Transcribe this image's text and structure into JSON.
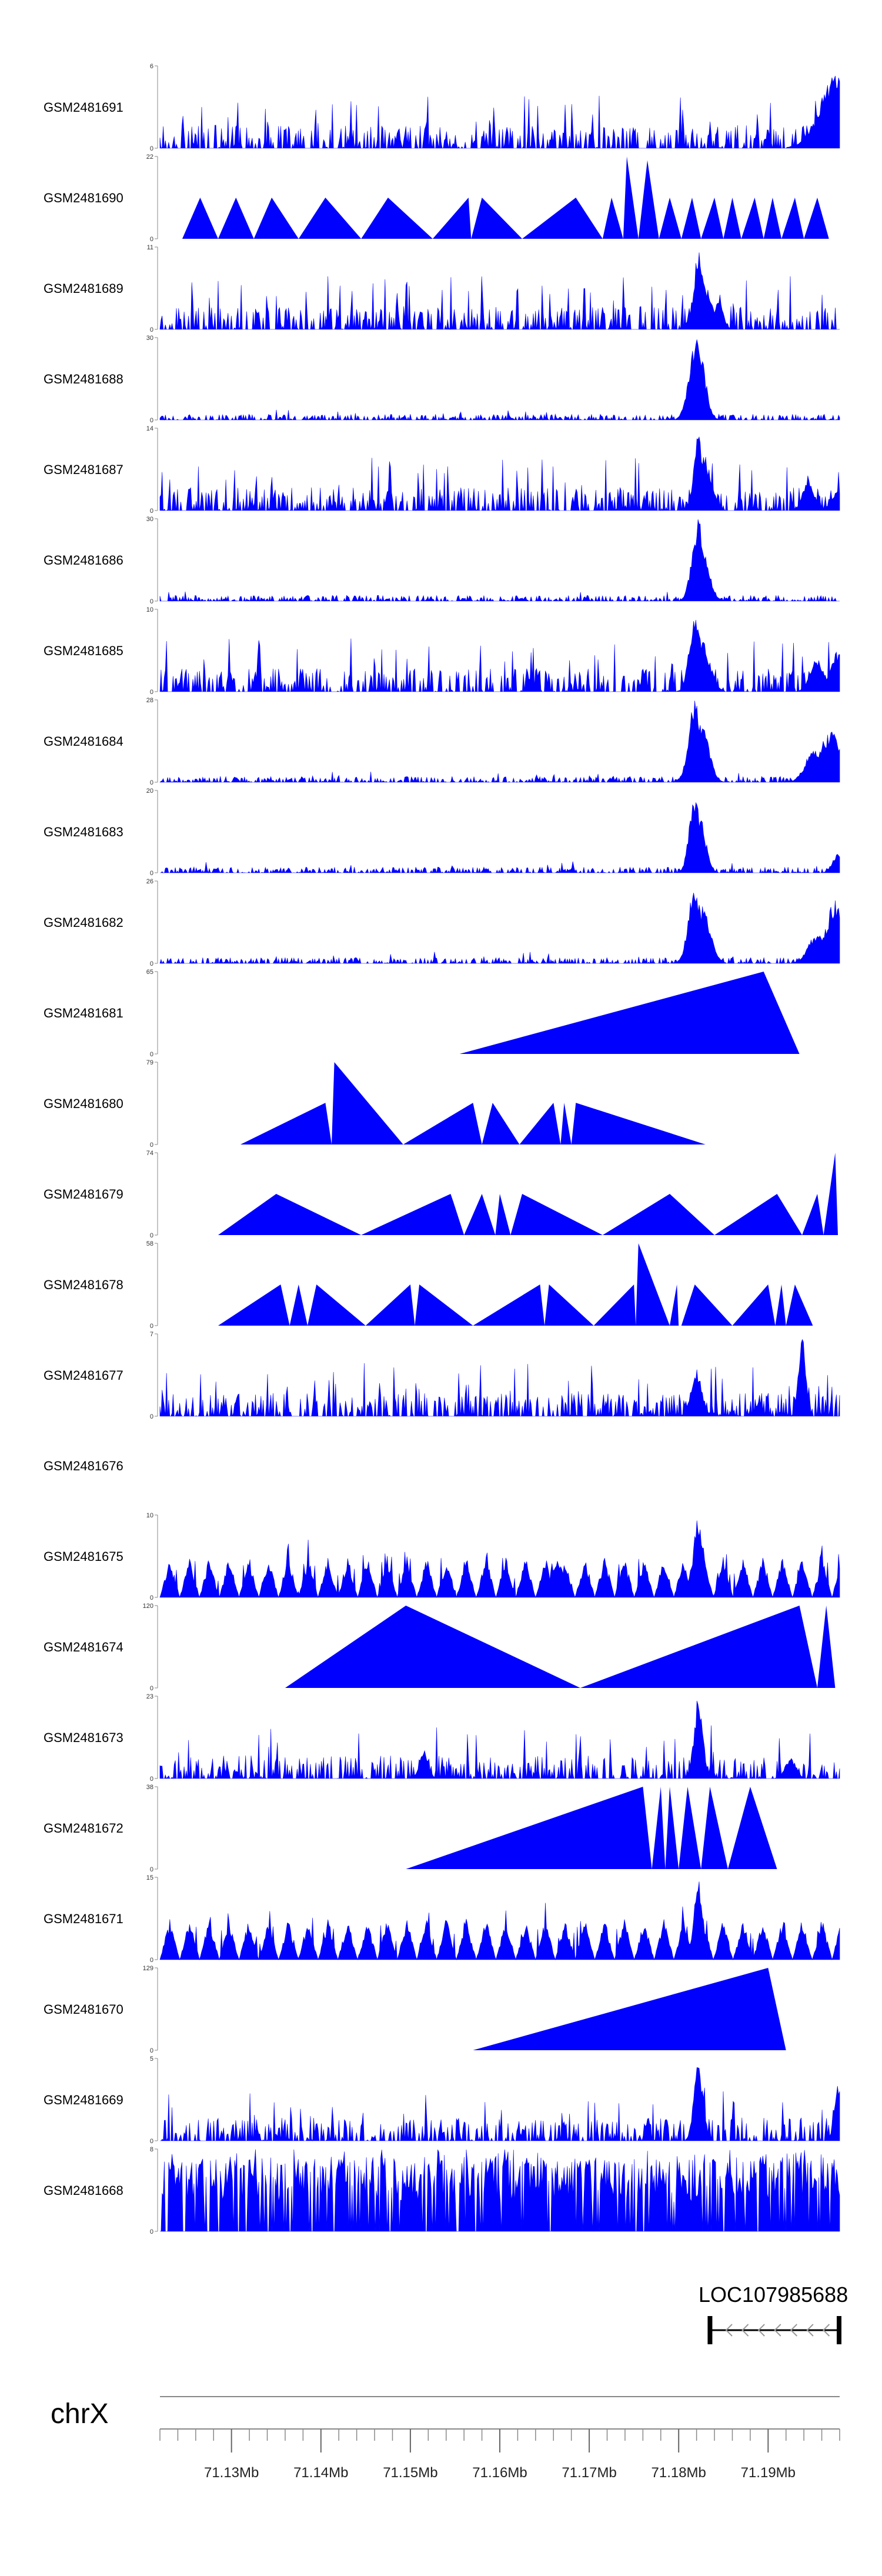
{
  "chart_data": {
    "type": "area",
    "title": "",
    "xlabel": "",
    "ylabel": "",
    "chromosome": "chrX",
    "xlim_mb": [
      71.122,
      71.198
    ],
    "axis_ticks": [
      "71.13Mb",
      "71.14Mb",
      "71.15Mb",
      "71.16Mb",
      "71.17Mb",
      "71.18Mb",
      "71.19Mb"
    ],
    "axis_tick_values": [
      71.13,
      71.14,
      71.15,
      71.16,
      71.17,
      71.18,
      71.19
    ],
    "gene": {
      "name": "LOC107985688",
      "start_mb": 71.1835,
      "end_mb": 71.198,
      "strand": "-"
    },
    "tracks": [
      {
        "name": "GSM2481691",
        "ymax": 6,
        "style": "dense",
        "peaks": [
          [
            71.198,
            6.0,
            0.002
          ]
        ]
      },
      {
        "name": "GSM2481690",
        "ymax": 22,
        "style": "sparse",
        "points": [
          [
            71.1245,
            0
          ],
          [
            71.1265,
            11
          ],
          [
            71.1285,
            0
          ],
          [
            71.1305,
            11
          ],
          [
            71.1325,
            0
          ],
          [
            71.1345,
            11
          ],
          [
            71.1375,
            0
          ],
          [
            71.1405,
            11
          ],
          [
            71.1445,
            0
          ],
          [
            71.1475,
            11
          ],
          [
            71.1525,
            0
          ],
          [
            71.1565,
            11
          ],
          [
            71.1568,
            0
          ],
          [
            71.158,
            11
          ],
          [
            71.1625,
            0
          ],
          [
            71.1685,
            11
          ],
          [
            71.1715,
            0
          ],
          [
            71.1725,
            11
          ],
          [
            71.1738,
            0
          ],
          [
            71.1742,
            22
          ],
          [
            71.1755,
            0
          ],
          [
            71.1765,
            21
          ],
          [
            71.1778,
            0
          ],
          [
            71.179,
            11
          ],
          [
            71.1803,
            0
          ],
          [
            71.1815,
            11
          ],
          [
            71.1825,
            0
          ],
          [
            71.184,
            11
          ],
          [
            71.185,
            0
          ],
          [
            71.186,
            11
          ],
          [
            71.187,
            0
          ],
          [
            71.1885,
            11
          ],
          [
            71.1895,
            0
          ],
          [
            71.1905,
            11
          ],
          [
            71.1915,
            0
          ],
          [
            71.193,
            11
          ],
          [
            71.194,
            0
          ],
          [
            71.1955,
            11
          ],
          [
            71.1968,
            0
          ]
        ]
      },
      {
        "name": "GSM2481689",
        "ymax": 11,
        "style": "dense",
        "peaks": [
          [
            71.1823,
            11,
            0.0006
          ],
          [
            71.183,
            6,
            0.0008
          ],
          [
            71.1845,
            4,
            0.0005
          ]
        ]
      },
      {
        "name": "GSM2481688",
        "ymax": 30,
        "style": "lowpeak",
        "peaks": [
          [
            71.182,
            30,
            0.0008
          ],
          [
            71.1823,
            26,
            0.0007
          ],
          [
            71.1816,
            14,
            0.0006
          ]
        ]
      },
      {
        "name": "GSM2481687",
        "ymax": 14,
        "style": "dense",
        "peaks": [
          [
            71.1822,
            14,
            0.0005
          ],
          [
            71.1828,
            10,
            0.0008
          ],
          [
            71.1945,
            6,
            0.0006
          ],
          [
            71.198,
            4,
            0.0008
          ]
        ]
      },
      {
        "name": "GSM2481686",
        "ymax": 30,
        "style": "lowpeak",
        "peaks": [
          [
            71.1822,
            30,
            0.0007
          ],
          [
            71.1826,
            20,
            0.0008
          ],
          [
            71.1818,
            12,
            0.0005
          ]
        ]
      },
      {
        "name": "GSM2481685",
        "ymax": 10,
        "style": "dense",
        "peaks": [
          [
            71.1818,
            10,
            0.0006
          ],
          [
            71.1825,
            7,
            0.0009
          ],
          [
            71.1832,
            4,
            0.0006
          ],
          [
            71.1955,
            4,
            0.0008
          ],
          [
            71.1978,
            5,
            0.0008
          ]
        ]
      },
      {
        "name": "GSM2481684",
        "ymax": 28,
        "style": "lowpeak",
        "peaks": [
          [
            71.1818,
            28,
            0.0007
          ],
          [
            71.1826,
            20,
            0.0008
          ],
          [
            71.1832,
            10,
            0.0006
          ],
          [
            71.1952,
            12,
            0.001
          ],
          [
            71.197,
            18,
            0.0012
          ]
        ]
      },
      {
        "name": "GSM2481683",
        "ymax": 20,
        "style": "lowpeak",
        "peaks": [
          [
            71.1818,
            20,
            0.0006
          ],
          [
            71.1823,
            14,
            0.0007
          ],
          [
            71.1978,
            5,
            0.0006
          ]
        ]
      },
      {
        "name": "GSM2481682",
        "ymax": 26,
        "style": "lowpeak",
        "peaks": [
          [
            71.1818,
            26,
            0.0007
          ],
          [
            71.1826,
            18,
            0.0009
          ],
          [
            71.1833,
            8,
            0.0006
          ],
          [
            71.1955,
            10,
            0.001
          ],
          [
            71.1975,
            20,
            0.001
          ]
        ]
      },
      {
        "name": "GSM2481681",
        "ymax": 65,
        "style": "sparse",
        "points": [
          [
            71.1555,
            0
          ],
          [
            71.1895,
            65
          ],
          [
            71.1935,
            0
          ]
        ]
      },
      {
        "name": "GSM2481680",
        "ymax": 79,
        "style": "sparse",
        "points": [
          [
            71.131,
            0
          ],
          [
            71.1405,
            40
          ],
          [
            71.1412,
            0
          ],
          [
            71.1415,
            79
          ],
          [
            71.1492,
            0
          ],
          [
            71.157,
            40
          ],
          [
            71.158,
            0
          ],
          [
            71.1592,
            40
          ],
          [
            71.1622,
            0
          ],
          [
            71.166,
            40
          ],
          [
            71.1668,
            0
          ],
          [
            71.1672,
            40
          ],
          [
            71.168,
            0
          ],
          [
            71.1685,
            40
          ],
          [
            71.183,
            0
          ]
        ]
      },
      {
        "name": "GSM2481679",
        "ymax": 74,
        "style": "sparse",
        "points": [
          [
            71.1285,
            0
          ],
          [
            71.135,
            37
          ],
          [
            71.1445,
            0
          ],
          [
            71.1545,
            37
          ],
          [
            71.1548,
            30
          ],
          [
            71.156,
            0
          ],
          [
            71.158,
            37
          ],
          [
            71.1595,
            0
          ],
          [
            71.16,
            37
          ],
          [
            71.1612,
            0
          ],
          [
            71.1625,
            37
          ],
          [
            71.1715,
            0
          ],
          [
            71.179,
            37
          ],
          [
            71.184,
            0
          ],
          [
            71.191,
            37
          ],
          [
            71.1938,
            0
          ],
          [
            71.1955,
            37
          ],
          [
            71.1962,
            0
          ],
          [
            71.1975,
            74
          ],
          [
            71.1978,
            0
          ]
        ]
      },
      {
        "name": "GSM2481678",
        "ymax": 58,
        "style": "sparse",
        "points": [
          [
            71.1285,
            0
          ],
          [
            71.1355,
            29
          ],
          [
            71.1365,
            0
          ],
          [
            71.1375,
            29
          ],
          [
            71.1385,
            0
          ],
          [
            71.1395,
            29
          ],
          [
            71.145,
            0
          ],
          [
            71.15,
            29
          ],
          [
            71.1505,
            0
          ],
          [
            71.151,
            29
          ],
          [
            71.157,
            0
          ],
          [
            71.1645,
            29
          ],
          [
            71.165,
            0
          ],
          [
            71.1655,
            29
          ],
          [
            71.1705,
            0
          ],
          [
            71.175,
            29
          ],
          [
            71.1752,
            0
          ],
          [
            71.1755,
            58
          ],
          [
            71.179,
            0
          ],
          [
            71.1798,
            29
          ],
          [
            71.18,
            0
          ],
          [
            71.1803,
            0
          ],
          [
            71.1818,
            29
          ],
          [
            71.186,
            0
          ],
          [
            71.19,
            29
          ],
          [
            71.1908,
            0
          ],
          [
            71.1915,
            29
          ],
          [
            71.192,
            0
          ],
          [
            71.193,
            29
          ],
          [
            71.195,
            0
          ]
        ]
      },
      {
        "name": "GSM2481677",
        "ymax": 7,
        "style": "dense",
        "peaks": [
          [
            71.1938,
            7,
            0.0004
          ],
          [
            71.182,
            4,
            0.0006
          ]
        ]
      },
      {
        "name": "GSM2481676",
        "ymax": 0,
        "style": "empty"
      },
      {
        "name": "GSM2481675",
        "ymax": 10,
        "style": "triangles",
        "peaks": [
          [
            71.1822,
            10,
            0.0006
          ],
          [
            71.1665,
            5,
            0.0006
          ]
        ]
      },
      {
        "name": "GSM2481674",
        "ymax": 120,
        "style": "sparse",
        "points": [
          [
            71.136,
            0
          ],
          [
            71.1495,
            120
          ],
          [
            71.169,
            0
          ],
          [
            71.1935,
            120
          ],
          [
            71.1955,
            0
          ],
          [
            71.1965,
            120
          ],
          [
            71.1975,
            0
          ]
        ]
      },
      {
        "name": "GSM2481673",
        "ymax": 23,
        "style": "dense",
        "peaks": [
          [
            71.1822,
            23,
            0.0005
          ],
          [
            71.1515,
            8,
            0.0005
          ],
          [
            71.1925,
            6,
            0.0006
          ]
        ]
      },
      {
        "name": "GSM2481672",
        "ymax": 38,
        "style": "sparse",
        "points": [
          [
            71.1495,
            0
          ],
          [
            71.176,
            38
          ],
          [
            71.177,
            0
          ],
          [
            71.178,
            38
          ],
          [
            71.1785,
            0
          ],
          [
            71.179,
            38
          ],
          [
            71.18,
            0
          ],
          [
            71.181,
            38
          ],
          [
            71.1825,
            0
          ],
          [
            71.1835,
            38
          ],
          [
            71.1855,
            0
          ],
          [
            71.188,
            38
          ],
          [
            71.191,
            0
          ]
        ]
      },
      {
        "name": "GSM2481671",
        "ymax": 15,
        "style": "triangles",
        "peaks": [
          [
            71.1822,
            15,
            0.0005
          ]
        ]
      },
      {
        "name": "GSM2481670",
        "ymax": 129,
        "style": "sparse",
        "points": [
          [
            71.157,
            0
          ],
          [
            71.19,
            129
          ],
          [
            71.192,
            0
          ]
        ]
      },
      {
        "name": "GSM2481669",
        "ymax": 5,
        "style": "dense",
        "peaks": [
          [
            71.1822,
            5,
            0.0005
          ],
          [
            71.1978,
            4,
            0.0004
          ]
        ]
      },
      {
        "name": "GSM2481668",
        "ymax": 8,
        "style": "fullbars"
      }
    ]
  }
}
